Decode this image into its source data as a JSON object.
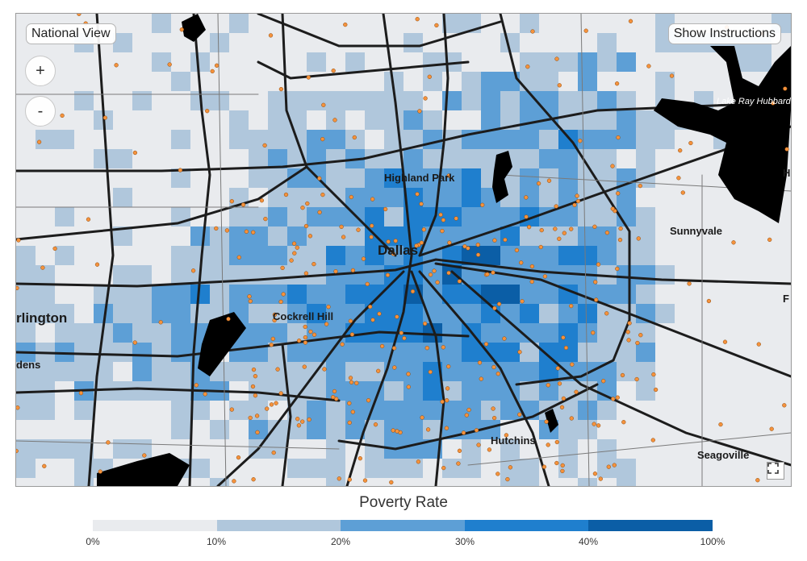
{
  "controls": {
    "national_view": "National View",
    "show_instructions": "Show Instructions",
    "zoom_in": "+",
    "zoom_out": "-"
  },
  "places": {
    "highland_park": "Highland Park",
    "dallas": "Dallas",
    "sunnyvale": "Sunnyvale",
    "cockrell_hill": "Cockrell Hill",
    "arlington": "rlington",
    "gardens": "dens",
    "hutchins": "Hutchins",
    "seagoville": "Seagoville",
    "lake_ray_hubbard": "Lake Ray Hubbard",
    "edge_h": "H",
    "edge_f": "F"
  },
  "legend": {
    "title": "Poverty Rate",
    "bins": [
      {
        "label": "0%",
        "color": "#e9ebee"
      },
      {
        "label": "10%",
        "color": "#b0c7dc"
      },
      {
        "label": "20%",
        "color": "#5d9fd6"
      },
      {
        "label": "30%",
        "color": "#1f7fce"
      },
      {
        "label": "40%",
        "color": "#0b5ea6"
      }
    ],
    "end_label": "100%"
  },
  "colors": {
    "water": "#000000",
    "point": "#f5923c",
    "road": "#1c1c1c"
  }
}
